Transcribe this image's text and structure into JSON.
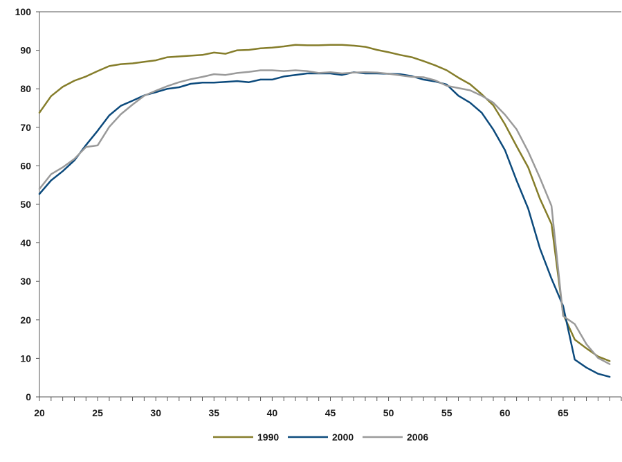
{
  "chart_data": {
    "type": "line",
    "title": "",
    "xlabel": "",
    "ylabel": "",
    "xlim": [
      20,
      69
    ],
    "ylim": [
      0,
      100
    ],
    "x_ticks": [
      20,
      25,
      30,
      35,
      40,
      45,
      50,
      55,
      60,
      65
    ],
    "y_ticks": [
      0,
      10,
      20,
      30,
      40,
      50,
      60,
      70,
      80,
      90,
      100
    ],
    "grid": false,
    "legend_position": "bottom-center",
    "x": [
      20,
      21,
      22,
      23,
      24,
      25,
      26,
      27,
      28,
      29,
      30,
      31,
      32,
      33,
      34,
      35,
      36,
      37,
      38,
      39,
      40,
      41,
      42,
      43,
      44,
      45,
      46,
      47,
      48,
      49,
      50,
      51,
      52,
      53,
      54,
      55,
      56,
      57,
      58,
      59,
      60,
      61,
      62,
      63,
      64,
      65,
      66,
      67,
      68,
      69
    ],
    "series": [
      {
        "name": "1990",
        "color": "#857d2a",
        "values": [
          73.8,
          78.1,
          80.5,
          82.1,
          83.2,
          84.6,
          85.9,
          86.4,
          86.6,
          87.0,
          87.4,
          88.2,
          88.4,
          88.6,
          88.8,
          89.4,
          89.1,
          90.0,
          90.1,
          90.5,
          90.7,
          91.0,
          91.4,
          91.3,
          91.3,
          91.4,
          91.4,
          91.2,
          90.9,
          90.1,
          89.5,
          88.8,
          88.2,
          87.2,
          86.1,
          84.8,
          82.9,
          81.2,
          78.6,
          75.7,
          70.8,
          65.1,
          59.6,
          51.5,
          44.9,
          21.5,
          14.9,
          12.6,
          10.5,
          9.3
        ]
      },
      {
        "name": "2000",
        "color": "#0c4a7c",
        "values": [
          52.7,
          56.2,
          58.6,
          61.4,
          65.4,
          69.1,
          73.1,
          75.6,
          76.9,
          78.3,
          79.1,
          80.0,
          80.4,
          81.3,
          81.6,
          81.6,
          81.8,
          82.0,
          81.7,
          82.4,
          82.4,
          83.2,
          83.6,
          84.0,
          84.0,
          84.0,
          83.6,
          84.3,
          84.0,
          84.0,
          83.9,
          83.8,
          83.3,
          82.4,
          81.9,
          81.1,
          78.2,
          76.4,
          73.8,
          69.4,
          64.1,
          56.2,
          48.9,
          38.6,
          30.7,
          23.6,
          9.7,
          7.6,
          6.0,
          5.2
        ]
      },
      {
        "name": "2006",
        "color": "#9a9a9a",
        "values": [
          54.0,
          57.8,
          59.6,
          61.8,
          64.9,
          65.3,
          70.1,
          73.4,
          75.9,
          78.2,
          79.5,
          80.7,
          81.7,
          82.5,
          83.1,
          83.8,
          83.6,
          84.1,
          84.4,
          84.8,
          84.8,
          84.6,
          84.8,
          84.6,
          84.1,
          84.3,
          84.0,
          84.2,
          84.3,
          84.2,
          83.9,
          83.5,
          83.1,
          83.0,
          82.2,
          80.8,
          80.2,
          79.6,
          78.2,
          76.4,
          73.3,
          69.5,
          63.7,
          56.9,
          49.6,
          21.0,
          18.9,
          13.7,
          10.1,
          8.5
        ]
      }
    ]
  }
}
